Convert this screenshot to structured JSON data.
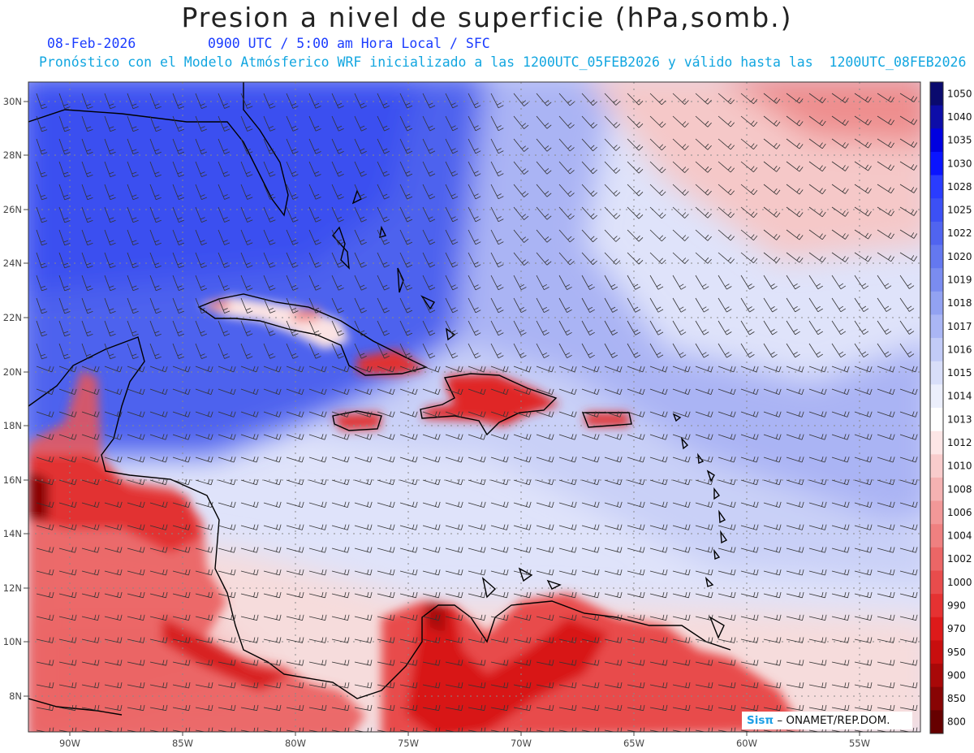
{
  "header": {
    "title": "Presion a nivel de superficie (hPa,somb.)",
    "date": "08-Feb-2026",
    "valid_time": "0900 UTC / 5:00 am Hora Local / SFC",
    "forecast_info": "Pronóstico con el Modelo Atmósferico WRF inicializado a las 1200UTC_05FEB2026 y válido hasta las  1200UTC_08FEB2026"
  },
  "latitude_labels": [
    "30N",
    "28N",
    "26N",
    "24N",
    "22N",
    "20N",
    "18N",
    "16N",
    "14N",
    "12N",
    "10N",
    "8N"
  ],
  "longitude_labels": [
    "90W",
    "85W",
    "80W",
    "75W",
    "70W",
    "65W",
    "60W",
    "55W"
  ],
  "colorbar": {
    "levels": [
      "1050",
      "1040",
      "1035",
      "1030",
      "1028",
      "1025",
      "1022",
      "1020",
      "1019",
      "1018",
      "1017",
      "1016",
      "1015",
      "1014",
      "1013",
      "1012",
      "1010",
      "1008",
      "1006",
      "1004",
      "1002",
      "1000",
      "990",
      "970",
      "950",
      "900",
      "850",
      "800"
    ],
    "colors": [
      "#0a0a6e",
      "#0d0da8",
      "#0000e0",
      "#0a14ff",
      "#2a3cff",
      "#3c50f5",
      "#5064f0",
      "#6478f0",
      "#7a8cf0",
      "#92a2f2",
      "#aab6f5",
      "#c2cbf7",
      "#d8def9",
      "#eceffc",
      "#ffffff",
      "#fde6e6",
      "#f9cccc",
      "#f5b2b2",
      "#f29898",
      "#ef8080",
      "#ec6666",
      "#e84c4c",
      "#e53232",
      "#dd1a1a",
      "#c80e0e",
      "#a80808",
      "#880404",
      "#660000"
    ]
  },
  "credit": {
    "brand": "Sisπ",
    "text": " – ONAMET/REP.DOM."
  }
}
